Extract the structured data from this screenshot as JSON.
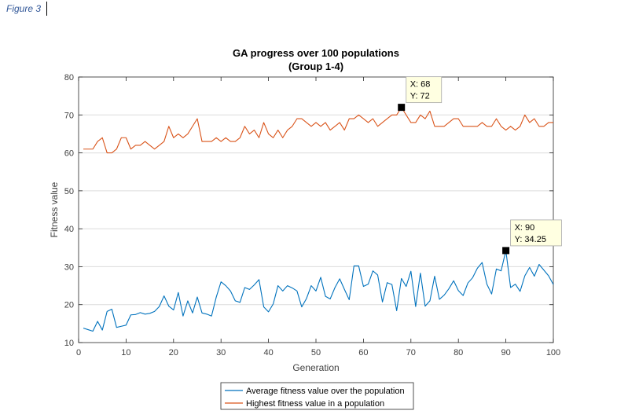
{
  "caption": "Figure 3",
  "chart_data": {
    "type": "line",
    "title": "GA progress over 100 populations",
    "subtitle": "(Group 1-4)",
    "xlabel": "Generation",
    "ylabel": "Fitness value",
    "xlim": [
      0,
      100
    ],
    "ylim": [
      10,
      80
    ],
    "xticks": [
      "0",
      "10",
      "20",
      "30",
      "40",
      "50",
      "60",
      "70",
      "80",
      "90",
      "100"
    ],
    "yticks": [
      "10",
      "20",
      "30",
      "40",
      "50",
      "60",
      "70",
      "80"
    ],
    "grid": "horizontal",
    "legend_position": "bottom",
    "x": [
      1,
      2,
      3,
      4,
      5,
      6,
      7,
      8,
      9,
      10,
      11,
      12,
      13,
      14,
      15,
      16,
      17,
      18,
      19,
      20,
      21,
      22,
      23,
      24,
      25,
      26,
      27,
      28,
      29,
      30,
      31,
      32,
      33,
      34,
      35,
      36,
      37,
      38,
      39,
      40,
      41,
      42,
      43,
      44,
      45,
      46,
      47,
      48,
      49,
      50,
      51,
      52,
      53,
      54,
      55,
      56,
      57,
      58,
      59,
      60,
      61,
      62,
      63,
      64,
      65,
      66,
      67,
      68,
      69,
      70,
      71,
      72,
      73,
      74,
      75,
      76,
      77,
      78,
      79,
      80,
      81,
      82,
      83,
      84,
      85,
      86,
      87,
      88,
      89,
      90,
      91,
      92,
      93,
      94,
      95,
      96,
      97,
      98,
      99,
      100
    ],
    "series": [
      {
        "name": "Average fitness value over the population",
        "color": "#0072bd",
        "values": [
          13.8,
          13.4,
          13.0,
          15.6,
          13.3,
          18.2,
          18.8,
          14.0,
          14.3,
          14.6,
          17.3,
          17.4,
          17.9,
          17.5,
          17.7,
          18.2,
          19.5,
          22.3,
          19.6,
          18.6,
          23.2,
          17.0,
          21.0,
          17.8,
          22.0,
          17.8,
          17.5,
          17.0,
          22.0,
          26.0,
          25.0,
          23.6,
          21.0,
          20.6,
          24.5,
          24.0,
          25.2,
          26.6,
          19.4,
          18.1,
          20.2,
          25.0,
          23.6,
          25.0,
          24.4,
          23.6,
          19.4,
          21.6,
          25.0,
          23.6,
          27.2,
          22.2,
          21.5,
          24.5,
          26.8,
          24.0,
          21.3,
          30.2,
          30.2,
          24.8,
          25.4,
          28.9,
          27.8,
          20.7,
          25.8,
          25.3,
          18.4,
          26.9,
          24.8,
          28.8,
          19.5,
          28.3,
          19.6,
          21.0,
          27.5,
          21.4,
          22.5,
          24.2,
          26.3,
          23.7,
          22.4,
          25.7,
          27.1,
          29.6,
          31.1,
          25.4,
          22.8,
          29.4,
          28.9,
          34.25,
          24.5,
          25.4,
          23.5,
          27.6,
          29.8,
          27.5,
          30.6,
          29.1,
          27.6,
          25.3
        ]
      },
      {
        "name": "Highest fitness value in a population",
        "color": "#d95319",
        "values": [
          61,
          61,
          61,
          63,
          64,
          60,
          60,
          61,
          64,
          64,
          61,
          62,
          62,
          63,
          62,
          61,
          62,
          63,
          67,
          64,
          65,
          64,
          65,
          67,
          69,
          63,
          63,
          63,
          64,
          63,
          64,
          63,
          63,
          64,
          67,
          65,
          66,
          64,
          68,
          65,
          64,
          66,
          64,
          66,
          67,
          69,
          69,
          68,
          67,
          68,
          67,
          68,
          66,
          67,
          68,
          66,
          69,
          69,
          70,
          69,
          68,
          69,
          67,
          68,
          69,
          70,
          70,
          72,
          70,
          68,
          68,
          70,
          69,
          71,
          67,
          67,
          67,
          68,
          69,
          69,
          67,
          67,
          67,
          67,
          68,
          67,
          67,
          69,
          67,
          66,
          67,
          66,
          67,
          70,
          68,
          69,
          67,
          67,
          68,
          68
        ]
      }
    ],
    "datatips": [
      {
        "x_label": "X: 68",
        "y_label": "Y: 72",
        "x": 68,
        "y": 72
      },
      {
        "x_label": "X: 90",
        "y_label": "Y: 34.25",
        "x": 90,
        "y": 34.25
      }
    ]
  }
}
